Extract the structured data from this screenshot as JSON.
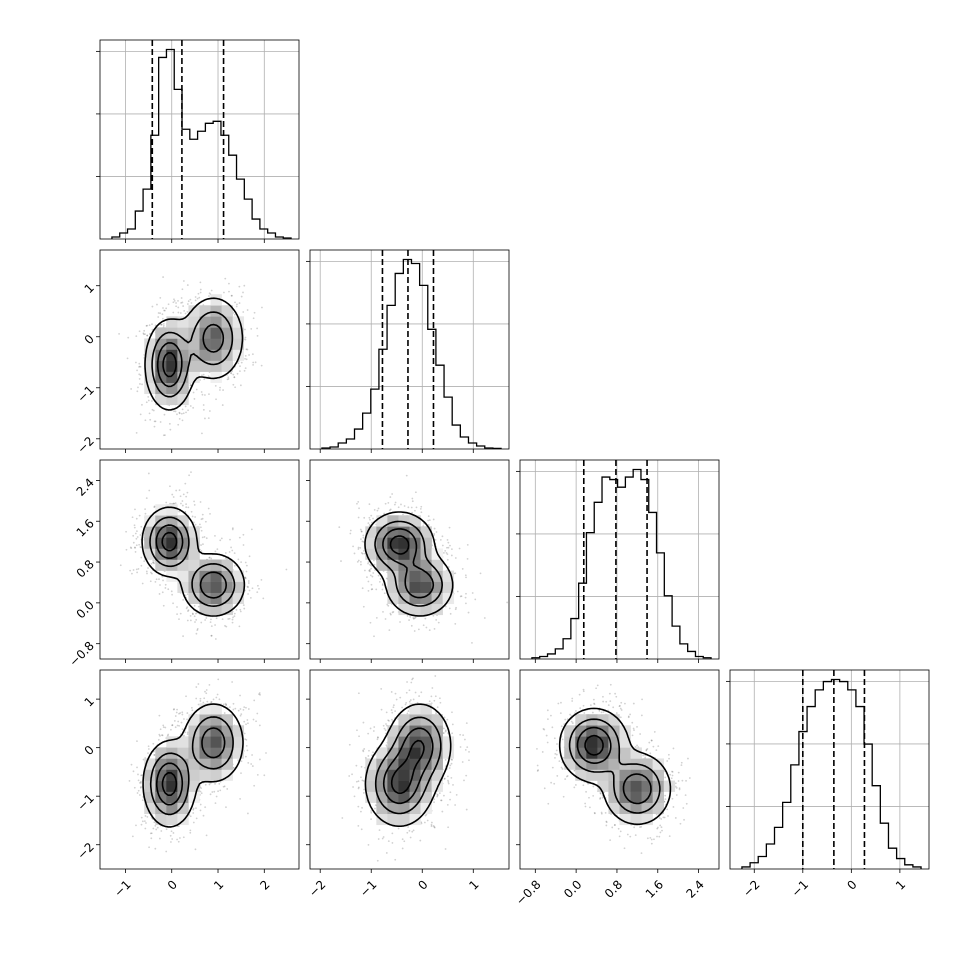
{
  "chart_data": {
    "type": "corner",
    "grid": true,
    "quantile_line_style": "dashed",
    "params": [
      {
        "name": "",
        "range": [
          -1.55,
          2.75
        ],
        "ticks": [
          "−1",
          "0",
          "1",
          "2"
        ],
        "tick_values": [
          -1,
          0,
          1,
          2
        ]
      },
      {
        "name": "",
        "range": [
          -2.2,
          1.7
        ],
        "ticks": [
          "−2",
          "−1",
          "0",
          "1"
        ],
        "tick_values": [
          -2,
          -1,
          0,
          1
        ]
      },
      {
        "name": "",
        "range": [
          -1.1,
          2.8
        ],
        "ticks": [
          "−0.8",
          "0.0",
          "0.8",
          "1.6",
          "2.4"
        ],
        "tick_values": [
          -0.8,
          0.0,
          0.8,
          1.6,
          2.4
        ]
      },
      {
        "name": "",
        "range": [
          -2.5,
          1.6
        ],
        "ticks": [
          "−2",
          "−1",
          "0",
          "1"
        ],
        "tick_values": [
          -2,
          -1,
          0,
          1
        ]
      }
    ],
    "histograms": [
      {
        "param": 0,
        "quantiles": [
          -0.42,
          0.22,
          1.12
        ],
        "bin_counts": [
          0.01,
          0.03,
          0.05,
          0.14,
          0.25,
          0.52,
          0.91,
          0.95,
          0.75,
          0.55,
          0.5,
          0.54,
          0.58,
          0.59,
          0.52,
          0.42,
          0.3,
          0.2,
          0.1,
          0.05,
          0.03,
          0.01,
          0.005
        ]
      },
      {
        "param": 1,
        "quantiles": [
          -0.78,
          -0.28,
          0.22
        ],
        "bin_counts": [
          0.005,
          0.01,
          0.03,
          0.05,
          0.1,
          0.18,
          0.3,
          0.5,
          0.72,
          0.88,
          0.95,
          0.93,
          0.82,
          0.6,
          0.42,
          0.26,
          0.12,
          0.06,
          0.03,
          0.015,
          0.005,
          0.003
        ]
      },
      {
        "param": 2,
        "quantiles": [
          0.15,
          0.78,
          1.39
        ],
        "bin_counts": [
          0.005,
          0.01,
          0.02,
          0.04,
          0.08,
          0.16,
          0.3,
          0.5,
          0.62,
          0.72,
          0.71,
          0.68,
          0.72,
          0.75,
          0.71,
          0.58,
          0.42,
          0.25,
          0.13,
          0.06,
          0.03,
          0.01,
          0.005
        ]
      },
      {
        "param": 3,
        "quantiles": [
          -1.0,
          -0.36,
          0.27
        ],
        "bin_counts": [
          0.01,
          0.03,
          0.06,
          0.12,
          0.2,
          0.32,
          0.5,
          0.66,
          0.78,
          0.86,
          0.9,
          0.91,
          0.9,
          0.86,
          0.78,
          0.6,
          0.4,
          0.22,
          0.1,
          0.05,
          0.02,
          0.01
        ]
      }
    ],
    "pairs": [
      {
        "x": 0,
        "y": 1,
        "modes": [
          {
            "cx": -0.05,
            "cy": -0.55,
            "sx": 0.25,
            "sy": 0.42,
            "w": 1.0
          },
          {
            "cx": 0.9,
            "cy": -0.03,
            "sx": 0.32,
            "sy": 0.4,
            "w": 0.75
          }
        ]
      },
      {
        "x": 0,
        "y": 2,
        "modes": [
          {
            "cx": -0.05,
            "cy": 1.2,
            "sx": 0.28,
            "sy": 0.32,
            "w": 1.0
          },
          {
            "cx": 0.9,
            "cy": 0.35,
            "sx": 0.33,
            "sy": 0.3,
            "w": 0.85
          }
        ]
      },
      {
        "x": 1,
        "y": 2,
        "modes": [
          {
            "cx": -0.45,
            "cy": 1.15,
            "sx": 0.32,
            "sy": 0.3,
            "w": 1.0
          },
          {
            "cx": -0.05,
            "cy": 0.35,
            "sx": 0.32,
            "sy": 0.3,
            "w": 0.85
          }
        ]
      },
      {
        "x": 0,
        "y": 3,
        "modes": [
          {
            "cx": -0.05,
            "cy": -0.75,
            "sx": 0.27,
            "sy": 0.42,
            "w": 1.0
          },
          {
            "cx": 0.9,
            "cy": 0.1,
            "sx": 0.32,
            "sy": 0.4,
            "w": 0.8
          }
        ]
      },
      {
        "x": 1,
        "y": 3,
        "modes": [
          {
            "cx": -0.45,
            "cy": -0.75,
            "sx": 0.32,
            "sy": 0.42,
            "w": 1.0
          },
          {
            "cx": -0.05,
            "cy": 0.05,
            "sx": 0.3,
            "sy": 0.42,
            "w": 0.9
          }
        ]
      },
      {
        "x": 2,
        "y": 3,
        "modes": [
          {
            "cx": 0.35,
            "cy": 0.05,
            "sx": 0.32,
            "sy": 0.36,
            "w": 1.0
          },
          {
            "cx": 1.2,
            "cy": -0.85,
            "sx": 0.32,
            "sy": 0.36,
            "w": 0.85
          }
        ]
      }
    ]
  }
}
